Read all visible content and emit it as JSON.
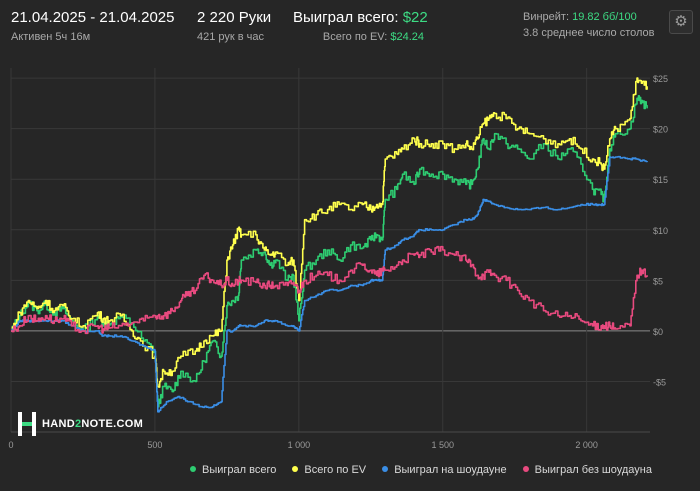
{
  "header": {
    "date_range": "21.04.2025 - 21.04.2025",
    "active": "Активен 5ч 16м",
    "hands": "2 220 Руки",
    "hands_per_hour": "421 рук в час",
    "won_label": "Выиграл всего:",
    "won_value": "$22",
    "ev_label": "Всего по EV:",
    "ev_value": "$24.24",
    "winrate_label": "Винрейт:",
    "winrate_value": "19.82 бб/100",
    "avg_tables": "3.8 среднее число столов"
  },
  "settings_icon": "gear-icon",
  "logo": {
    "text_pre": "HAND",
    "text_mid": "2",
    "text_post": "NOTE.COM"
  },
  "colors": {
    "background": "#262626",
    "grid": "#383838",
    "zero": "#8a8a8a",
    "won": "#2ecc71",
    "ev": "#ffff4d",
    "showdown": "#3a8ee6",
    "nonshowdown": "#e84a7f"
  },
  "chart_data": {
    "type": "line",
    "x_ticks": [
      0,
      500,
      1000,
      1500,
      2000
    ],
    "x_tick_labels": [
      "0",
      "500",
      "1 000",
      "1 500",
      "2 000"
    ],
    "xlim": [
      0,
      2220
    ],
    "y_ticks": [
      -5,
      0,
      5,
      10,
      15,
      20,
      25
    ],
    "y_tick_labels": [
      "-$5",
      "$0",
      "$5",
      "$10",
      "$15",
      "$20",
      "$25"
    ],
    "ylim": [
      -10,
      26
    ],
    "grid": true,
    "legend_position": "bottom-right",
    "series": [
      {
        "name": "Выиграл всего",
        "color": "#2ecc71",
        "points": [
          [
            0,
            0
          ],
          [
            30,
            1.5
          ],
          [
            60,
            2.8
          ],
          [
            90,
            2
          ],
          [
            120,
            2.6
          ],
          [
            150,
            1.8
          ],
          [
            180,
            2.2
          ],
          [
            210,
            1
          ],
          [
            250,
            0
          ],
          [
            300,
            1.5
          ],
          [
            320,
            0.8
          ],
          [
            340,
            0.6
          ],
          [
            380,
            1.4
          ],
          [
            420,
            0.8
          ],
          [
            460,
            -1
          ],
          [
            500,
            -2
          ],
          [
            510,
            -7.5
          ],
          [
            530,
            -5.5
          ],
          [
            560,
            -6
          ],
          [
            590,
            -4
          ],
          [
            640,
            -5
          ],
          [
            670,
            -3
          ],
          [
            700,
            -1
          ],
          [
            730,
            -2.5
          ],
          [
            750,
            2.5
          ],
          [
            770,
            3
          ],
          [
            790,
            3.5
          ],
          [
            800,
            7
          ],
          [
            850,
            8
          ],
          [
            880,
            7.8
          ],
          [
            900,
            6.5
          ],
          [
            920,
            7
          ],
          [
            960,
            5
          ],
          [
            980,
            5.5
          ],
          [
            1000,
            1
          ],
          [
            1020,
            6
          ],
          [
            1060,
            7
          ],
          [
            1100,
            8
          ],
          [
            1140,
            7
          ],
          [
            1180,
            8.5
          ],
          [
            1220,
            8.2
          ],
          [
            1250,
            9
          ],
          [
            1270,
            9.5
          ],
          [
            1290,
            9
          ],
          [
            1300,
            13
          ],
          [
            1340,
            14
          ],
          [
            1360,
            15.5
          ],
          [
            1400,
            14.5
          ],
          [
            1420,
            16
          ],
          [
            1460,
            15.5
          ],
          [
            1500,
            15.5
          ],
          [
            1540,
            15
          ],
          [
            1580,
            14.5
          ],
          [
            1600,
            14.5
          ],
          [
            1620,
            16
          ],
          [
            1640,
            19
          ],
          [
            1660,
            18
          ],
          [
            1680,
            19.5
          ],
          [
            1720,
            18.5
          ],
          [
            1760,
            18
          ],
          [
            1800,
            17
          ],
          [
            1850,
            18.5
          ],
          [
            1900,
            17
          ],
          [
            1940,
            18
          ],
          [
            1980,
            16.5
          ],
          [
            2020,
            14
          ],
          [
            2050,
            13.5
          ],
          [
            2060,
            13
          ],
          [
            2080,
            18
          ],
          [
            2100,
            19.5
          ],
          [
            2150,
            20
          ],
          [
            2175,
            23
          ],
          [
            2190,
            22.8
          ],
          [
            2210,
            22
          ]
        ]
      },
      {
        "name": "Всего по EV",
        "color": "#ffff4d",
        "points": [
          [
            0,
            0
          ],
          [
            30,
            1.8
          ],
          [
            60,
            3
          ],
          [
            90,
            2.2
          ],
          [
            120,
            3
          ],
          [
            150,
            2
          ],
          [
            180,
            2.5
          ],
          [
            210,
            1.2
          ],
          [
            250,
            0.5
          ],
          [
            300,
            1.8
          ],
          [
            320,
            1.2
          ],
          [
            340,
            1
          ],
          [
            380,
            1.5
          ],
          [
            420,
            0
          ],
          [
            450,
            -1
          ],
          [
            500,
            -2.5
          ],
          [
            510,
            -5.5
          ],
          [
            530,
            -4
          ],
          [
            560,
            -4
          ],
          [
            590,
            -2.5
          ],
          [
            640,
            -2
          ],
          [
            670,
            -1
          ],
          [
            700,
            -0.5
          ],
          [
            730,
            0
          ],
          [
            750,
            7
          ],
          [
            770,
            8.5
          ],
          [
            790,
            10
          ],
          [
            800,
            9.5
          ],
          [
            850,
            9.5
          ],
          [
            880,
            8
          ],
          [
            900,
            7.5
          ],
          [
            920,
            7.8
          ],
          [
            960,
            6.5
          ],
          [
            980,
            7
          ],
          [
            1000,
            3
          ],
          [
            1020,
            11
          ],
          [
            1060,
            11.5
          ],
          [
            1100,
            12
          ],
          [
            1140,
            12.5
          ],
          [
            1180,
            12
          ],
          [
            1220,
            12.5
          ],
          [
            1250,
            12
          ],
          [
            1270,
            12.5
          ],
          [
            1290,
            12.5
          ],
          [
            1300,
            17
          ],
          [
            1340,
            17.5
          ],
          [
            1360,
            18
          ],
          [
            1400,
            19
          ],
          [
            1420,
            18.5
          ],
          [
            1460,
            18.5
          ],
          [
            1500,
            18.5
          ],
          [
            1540,
            18
          ],
          [
            1580,
            18.5
          ],
          [
            1600,
            18
          ],
          [
            1620,
            19
          ],
          [
            1640,
            20.5
          ],
          [
            1660,
            21
          ],
          [
            1680,
            21.5
          ],
          [
            1720,
            21
          ],
          [
            1760,
            20
          ],
          [
            1800,
            19.5
          ],
          [
            1850,
            19
          ],
          [
            1900,
            18.5
          ],
          [
            1940,
            19
          ],
          [
            1980,
            18
          ],
          [
            2020,
            17
          ],
          [
            2050,
            16.5
          ],
          [
            2060,
            16
          ],
          [
            2080,
            19
          ],
          [
            2100,
            20
          ],
          [
            2150,
            21
          ],
          [
            2175,
            25
          ],
          [
            2190,
            24.5
          ],
          [
            2210,
            24.2
          ]
        ]
      },
      {
        "name": "Выиграл на шоудауне",
        "color": "#3a8ee6",
        "points": [
          [
            0,
            0
          ],
          [
            30,
            1
          ],
          [
            60,
            1
          ],
          [
            90,
            1
          ],
          [
            120,
            1
          ],
          [
            150,
            1
          ],
          [
            180,
            1
          ],
          [
            210,
            0.5
          ],
          [
            250,
            0
          ],
          [
            300,
            0
          ],
          [
            320,
            -0.5
          ],
          [
            340,
            -0.5
          ],
          [
            380,
            -0.5
          ],
          [
            420,
            -1
          ],
          [
            460,
            -1.5
          ],
          [
            500,
            -2
          ],
          [
            510,
            -8
          ],
          [
            540,
            -7
          ],
          [
            580,
            -6.5
          ],
          [
            620,
            -7
          ],
          [
            660,
            -7.5
          ],
          [
            700,
            -7.5
          ],
          [
            730,
            -7
          ],
          [
            750,
            0
          ],
          [
            770,
            0
          ],
          [
            790,
            0.5
          ],
          [
            800,
            0.5
          ],
          [
            850,
            0.5
          ],
          [
            880,
            1
          ],
          [
            900,
            1
          ],
          [
            920,
            1
          ],
          [
            960,
            0.5
          ],
          [
            980,
            0.5
          ],
          [
            1000,
            0
          ],
          [
            1020,
            3
          ],
          [
            1060,
            3.5
          ],
          [
            1100,
            4
          ],
          [
            1140,
            4
          ],
          [
            1180,
            4.5
          ],
          [
            1220,
            4.5
          ],
          [
            1250,
            5
          ],
          [
            1270,
            5
          ],
          [
            1290,
            5
          ],
          [
            1300,
            8
          ],
          [
            1340,
            8.5
          ],
          [
            1360,
            9
          ],
          [
            1400,
            9.5
          ],
          [
            1420,
            10
          ],
          [
            1460,
            10
          ],
          [
            1500,
            10
          ],
          [
            1540,
            10.5
          ],
          [
            1580,
            11
          ],
          [
            1600,
            11
          ],
          [
            1620,
            11.5
          ],
          [
            1640,
            13
          ],
          [
            1660,
            12.8
          ],
          [
            1680,
            12.5
          ],
          [
            1720,
            12.2
          ],
          [
            1760,
            12
          ],
          [
            1800,
            12
          ],
          [
            1850,
            12.2
          ],
          [
            1900,
            12
          ],
          [
            1940,
            12.2
          ],
          [
            1980,
            12.5
          ],
          [
            2020,
            12.5
          ],
          [
            2050,
            12.5
          ],
          [
            2060,
            12.5
          ],
          [
            2080,
            17.2
          ],
          [
            2100,
            17.2
          ],
          [
            2150,
            17
          ],
          [
            2175,
            17
          ],
          [
            2190,
            16.8
          ],
          [
            2210,
            16.8
          ]
        ]
      },
      {
        "name": "Выиграл без шоудауна",
        "color": "#e84a7f",
        "points": [
          [
            0,
            0
          ],
          [
            30,
            0.5
          ],
          [
            60,
            1.5
          ],
          [
            90,
            1
          ],
          [
            120,
            1.5
          ],
          [
            150,
            1
          ],
          [
            180,
            1.2
          ],
          [
            210,
            0.5
          ],
          [
            250,
            0
          ],
          [
            300,
            0.5
          ],
          [
            320,
            0.2
          ],
          [
            340,
            0.3
          ],
          [
            380,
            0.5
          ],
          [
            420,
            0.8
          ],
          [
            460,
            1
          ],
          [
            500,
            1.5
          ],
          [
            510,
            1.5
          ],
          [
            530,
            1.5
          ],
          [
            560,
            2
          ],
          [
            590,
            3
          ],
          [
            610,
            3.5
          ],
          [
            640,
            4
          ],
          [
            670,
            5.5
          ],
          [
            700,
            5
          ],
          [
            730,
            4.5
          ],
          [
            750,
            5
          ],
          [
            770,
            4.5
          ],
          [
            790,
            5
          ],
          [
            800,
            5
          ],
          [
            850,
            4.8
          ],
          [
            880,
            4.5
          ],
          [
            900,
            4.5
          ],
          [
            920,
            4.5
          ],
          [
            960,
            4.5
          ],
          [
            980,
            4.8
          ],
          [
            1000,
            4
          ],
          [
            1020,
            5
          ],
          [
            1060,
            5.5
          ],
          [
            1100,
            5.5
          ],
          [
            1140,
            5
          ],
          [
            1180,
            6
          ],
          [
            1220,
            6.5
          ],
          [
            1250,
            6
          ],
          [
            1270,
            5.5
          ],
          [
            1290,
            6
          ],
          [
            1300,
            6
          ],
          [
            1340,
            6.5
          ],
          [
            1360,
            7
          ],
          [
            1400,
            7.5
          ],
          [
            1420,
            7.5
          ],
          [
            1460,
            7.8
          ],
          [
            1500,
            8
          ],
          [
            1540,
            7.5
          ],
          [
            1580,
            7
          ],
          [
            1600,
            6.5
          ],
          [
            1620,
            5.5
          ],
          [
            1640,
            5.5
          ],
          [
            1660,
            5.8
          ],
          [
            1680,
            5.5
          ],
          [
            1720,
            5
          ],
          [
            1760,
            4
          ],
          [
            1800,
            3
          ],
          [
            1850,
            2
          ],
          [
            1900,
            1.5
          ],
          [
            1940,
            1.5
          ],
          [
            1980,
            1
          ],
          [
            2020,
            0.5
          ],
          [
            2050,
            0.5
          ],
          [
            2060,
            0.5
          ],
          [
            2080,
            0.5
          ],
          [
            2100,
            0.2
          ],
          [
            2150,
            0.5
          ],
          [
            2175,
            5.5
          ],
          [
            2190,
            6
          ],
          [
            2210,
            5.5
          ]
        ]
      }
    ]
  }
}
